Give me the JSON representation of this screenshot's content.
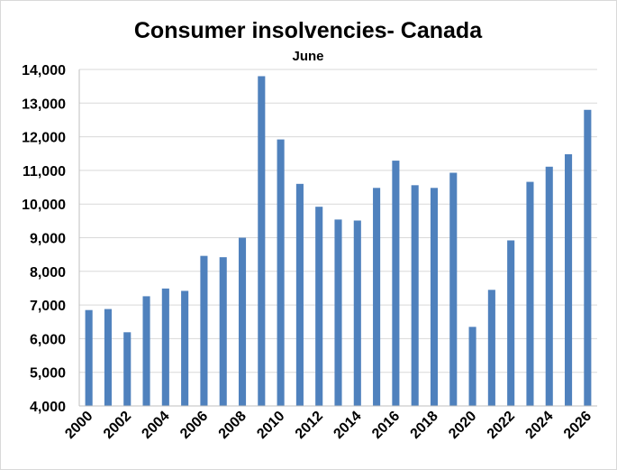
{
  "chart_data": {
    "type": "bar",
    "title": "Consumer insolvencies- Canada",
    "subtitle": "June",
    "categories": [
      "2000",
      "2001",
      "2002",
      "2003",
      "2004",
      "2005",
      "2006",
      "2007",
      "2008",
      "2009",
      "2010",
      "2011",
      "2012",
      "2013",
      "2014",
      "2015",
      "2016",
      "2017",
      "2018",
      "2019",
      "2020",
      "2021",
      "2022",
      "2023",
      "2024",
      "2025",
      "2026"
    ],
    "values": [
      6850,
      6880,
      6190,
      7260,
      7490,
      7420,
      8460,
      8420,
      9000,
      13800,
      11920,
      10600,
      9920,
      9540,
      9510,
      10480,
      11290,
      10560,
      10480,
      10930,
      6350,
      7450,
      8920,
      10660,
      11110,
      11480,
      12800
    ],
    "x_tick_labels": [
      "2000",
      "2002",
      "2004",
      "2006",
      "2008",
      "2010",
      "2012",
      "2014",
      "2016",
      "2018",
      "2020",
      "2022",
      "2024",
      "2026"
    ],
    "y_tick_labels": [
      "4,000",
      "5,000",
      "6,000",
      "7,000",
      "8,000",
      "9,000",
      "10,000",
      "11,000",
      "12,000",
      "13,000",
      "14,000"
    ],
    "ylim": [
      4000,
      14000
    ],
    "y_tick_step": 1000,
    "grid": true,
    "legend": "none",
    "colors": {
      "bar": "#4F81BD",
      "grid": "#d9d9d9",
      "axis": "#bfbfbf"
    }
  }
}
